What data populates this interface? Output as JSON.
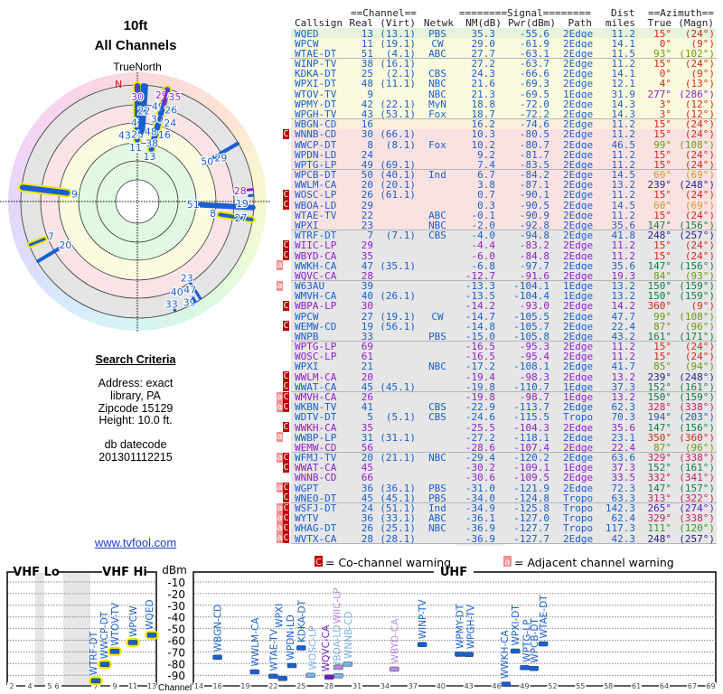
{
  "title": {
    "line1": "10ft",
    "line2": "All Channels",
    "north_label": "TrueNorth",
    "north_mark": "N"
  },
  "criteria": {
    "heading": "Search Criteria",
    "lines": [
      "Address: exact",
      "library, PA",
      "Zipcode 15129",
      "Height: 10.0 ft."
    ],
    "db_lines": [
      "db datecode",
      "201301112215"
    ],
    "link": "www.tvfool.com"
  },
  "table": {
    "group_headers": {
      "channel": "==Channel==",
      "signal": "========Signal========",
      "dist": "Dist",
      "azimuth": "==Azimuth=="
    },
    "headers": [
      "Callsign",
      "Real",
      "(Virt)",
      "Netwk",
      "NM(dB)",
      "Pwr(dBm)",
      "Path",
      "miles",
      "True",
      "(Magn)"
    ],
    "colors": {
      "blue": "#1a5fd0",
      "purple": "#9020d0",
      "cochannel": "#c00000",
      "adjacent": "#f29090",
      "highlight": "#f0e800"
    },
    "rows": [
      [
        "",
        "WQED",
        "13",
        "(13.1)",
        "PBS",
        "35.3",
        "-55.6",
        "2Edge",
        "11.2",
        "15°",
        "(24°)",
        "b"
      ],
      [
        "",
        "WPCW",
        "11",
        "(19.1)",
        "CW",
        "29.0",
        "-61.9",
        "2Edge",
        "14.1",
        "0°",
        "(9°)",
        "b"
      ],
      [
        "",
        "WTAE-DT",
        "51",
        "(4.1)",
        "ABC",
        "27.7",
        "-63.1",
        "2Edge",
        "11.5",
        "93°",
        "(102°)",
        "b"
      ],
      [
        "",
        "WINP-TV",
        "38",
        "(16.1)",
        "",
        "27.2",
        "-63.7",
        "2Edge",
        "11.2",
        "15°",
        "(24°)",
        "b"
      ],
      [
        "",
        "KDKA-DT",
        "25",
        "(2.1)",
        "CBS",
        "24.3",
        "-66.6",
        "2Edge",
        "14.1",
        "0°",
        "(9°)",
        "b"
      ],
      [
        "",
        "WPXI-DT",
        "48",
        "(11.1)",
        "NBC",
        "21.6",
        "-69.3",
        "2Edge",
        "12.1",
        "4°",
        "(13°)",
        "b"
      ],
      [
        "",
        "WTOV-TV",
        "9",
        "",
        "NBC",
        "21.3",
        "-69.5",
        "1Edge",
        "31.9",
        "277°",
        "(286°)",
        "b"
      ],
      [
        "",
        "WPMY-DT",
        "42",
        "(22.1)",
        "MyN",
        "18.8",
        "-72.0",
        "2Edge",
        "14.3",
        "3°",
        "(12°)",
        "b"
      ],
      [
        "",
        "WPGH-TV",
        "43",
        "(53.1)",
        "Fox",
        "18.7",
        "-72.2",
        "2Edge",
        "14.3",
        "3°",
        "(12°)",
        "b"
      ],
      [
        "",
        "WBGN-CD",
        "16",
        "",
        "",
        "16.2",
        "-74.6",
        "2Edge",
        "11.2",
        "15°",
        "(24°)",
        "b"
      ],
      [
        "C",
        "WNNB-CD",
        "30",
        "(66.1)",
        "",
        "10.3",
        "-80.5",
        "2Edge",
        "11.2",
        "15°",
        "(24°)",
        "b"
      ],
      [
        "",
        "WWCP-DT",
        "8",
        "(8.1)",
        "Fox",
        "10.2",
        "-80.7",
        "2Edge",
        "46.5",
        "99°",
        "(108°)",
        "b"
      ],
      [
        "",
        "WPDN-LD",
        "24",
        "",
        "",
        "9.2",
        "-81.7",
        "2Edge",
        "11.2",
        "15°",
        "(24°)",
        "b"
      ],
      [
        "",
        "WPTG-LP",
        "49",
        "(69.1)",
        "",
        "7.4",
        "-83.5",
        "2Edge",
        "11.2",
        "15°",
        "(24°)",
        "b"
      ],
      [
        "",
        "WPCB-DT",
        "50",
        "(40.1)",
        "Ind",
        "6.7",
        "-84.2",
        "2Edge",
        "14.5",
        "60°",
        "(69°)",
        "b"
      ],
      [
        "",
        "WWLM-CA",
        "20",
        "(20.1)",
        "",
        "3.8",
        "-87.1",
        "2Edge",
        "13.2",
        "239°",
        "(248°)",
        "b"
      ],
      [
        "C",
        "WOSC-LP",
        "26",
        "(61.1)",
        "",
        "0.7",
        "-90.1",
        "2Edge",
        "11.2",
        "15°",
        "(24°)",
        "b"
      ],
      [
        "C",
        "WBOA-LD",
        "29",
        "",
        "",
        "0.3",
        "-90.5",
        "2Edge",
        "14.5",
        "60°",
        "(69°)",
        "b"
      ],
      [
        "",
        "WTAE-TV",
        "22",
        "",
        "ABC",
        "-0.1",
        "-90.9",
        "2Edge",
        "11.2",
        "15°",
        "(24°)",
        "b"
      ],
      [
        "",
        "WPXI",
        "23",
        "",
        "NBC",
        "-2.0",
        "-92.8",
        "2Edge",
        "35.6",
        "147°",
        "(156°)",
        "b"
      ],
      [
        "",
        "WTRF-DT",
        "7",
        "(7.1)",
        "CBS",
        "-4.0",
        "-94.8",
        "2Edge",
        "41.8",
        "248°",
        "(257°)",
        "b"
      ],
      [
        "C",
        "WIIC-LP",
        "29",
        "",
        "",
        "-4.4",
        "-83.2",
        "2Edge",
        "11.2",
        "15°",
        "(24°)",
        "p"
      ],
      [
        "C",
        "WBYD-CA",
        "35",
        "",
        "",
        "-6.0",
        "-84.8",
        "2Edge",
        "11.2",
        "15°",
        "(24°)",
        "p"
      ],
      [
        "a",
        "WWKH-CA",
        "47",
        "(35.1)",
        "",
        "-6.8",
        "-97.7",
        "2Edge",
        "35.6",
        "147°",
        "(156°)",
        "b"
      ],
      [
        "",
        "WQVC-CA",
        "28",
        "",
        "",
        "-12.7",
        "-91.6",
        "2Edge",
        "19.3",
        "84°",
        "(93°)",
        "p"
      ],
      [
        "a",
        "W63AU",
        "39",
        "",
        "",
        "-13.3",
        "-104.1",
        "1Edge",
        "13.2",
        "150°",
        "(159°)",
        "b"
      ],
      [
        "",
        "WMVH-CA",
        "40",
        "(26.1)",
        "",
        "-13.5",
        "-104.4",
        "1Edge",
        "13.2",
        "150°",
        "(159°)",
        "b"
      ],
      [
        "C",
        "WBPA-LP",
        "30",
        "",
        "",
        "-14.2",
        "-93.0",
        "2Edge",
        "14.2",
        "360°",
        "(9°)",
        "p"
      ],
      [
        "",
        "WPCW",
        "27",
        "(19.1)",
        "CW",
        "-14.7",
        "-105.5",
        "2Edge",
        "47.7",
        "99°",
        "(108°)",
        "b"
      ],
      [
        "C",
        "WEMW-CD",
        "19",
        "(56.1)",
        "",
        "-14.8",
        "-105.7",
        "2Edge",
        "22.4",
        "87°",
        "(96°)",
        "b"
      ],
      [
        "",
        "WNPB",
        "33",
        "",
        "PBS",
        "-15.0",
        "-105.8",
        "2Edge",
        "43.2",
        "161°",
        "(171°)",
        "b"
      ],
      [
        "",
        "WPTG-LP",
        "69",
        "",
        "",
        "-16.5",
        "-95.3",
        "2Edge",
        "11.2",
        "15°",
        "(24°)",
        "p"
      ],
      [
        "",
        "WOSC-LP",
        "61",
        "",
        "",
        "-16.5",
        "-95.4",
        "2Edge",
        "11.2",
        "15°",
        "(24°)",
        "p"
      ],
      [
        "",
        "WPXI",
        "21",
        "",
        "NBC",
        "-17.2",
        "-108.1",
        "2Edge",
        "41.7",
        "85°",
        "(94°)",
        "b"
      ],
      [
        "C",
        "WWLM-CA",
        "20",
        "",
        "",
        "-19.4",
        "-98.3",
        "2Edge",
        "13.2",
        "239°",
        "(248°)",
        "p"
      ],
      [
        "C",
        "WWAT-CA",
        "45",
        "(45.1)",
        "",
        "-19.8",
        "-110.7",
        "1Edge",
        "37.3",
        "152°",
        "(161°)",
        "b"
      ],
      [
        "aC",
        "WMVH-CA",
        "26",
        "",
        "",
        "-19.8",
        "-98.7",
        "1Edge",
        "13.2",
        "150°",
        "(159°)",
        "p"
      ],
      [
        "aC",
        "WKBN-TV",
        "41",
        "",
        "CBS",
        "-22.9",
        "-113.7",
        "2Edge",
        "62.3",
        "328°",
        "(338°)",
        "b"
      ],
      [
        "",
        "WDTV-DT",
        "5",
        "(5.1)",
        "CBS",
        "-24.6",
        "-115.5",
        "Tropo",
        "70.3",
        "194°",
        "(203°)",
        "b"
      ],
      [
        "C",
        "WWKH-CA",
        "35",
        "",
        "",
        "-25.5",
        "-104.3",
        "2Edge",
        "35.6",
        "147°",
        "(156°)",
        "p"
      ],
      [
        "a",
        "WWBP-LP",
        "31",
        "(31.1)",
        "",
        "-27.2",
        "-118.1",
        "2Edge",
        "23.1",
        "350°",
        "(360°)",
        "b"
      ],
      [
        "",
        "WEMW-CD",
        "56",
        "",
        "",
        "-28.6",
        "-107.4",
        "2Edge",
        "22.4",
        "87°",
        "(96°)",
        "p"
      ],
      [
        "aC",
        "WFMJ-TV",
        "20",
        "(21.1)",
        "NBC",
        "-29.4",
        "-120.2",
        "2Edge",
        "63.6",
        "329°",
        "(338°)",
        "b"
      ],
      [
        "C",
        "WWAT-CA",
        "45",
        "",
        "",
        "-30.2",
        "-109.1",
        "1Edge",
        "37.3",
        "152°",
        "(161°)",
        "p"
      ],
      [
        "",
        "WNNB-CD",
        "66",
        "",
        "",
        "-30.6",
        "-109.5",
        "2Edge",
        "33.5",
        "332°",
        "(341°)",
        "p"
      ],
      [
        "aC",
        "WGPT",
        "36",
        "(36.1)",
        "PBS",
        "-31.0",
        "-121.9",
        "2Edge",
        "72.3",
        "147°",
        "(157°)",
        "b"
      ],
      [
        "C",
        "WNEO-DT",
        "45",
        "(45.1)",
        "PBS",
        "-34.0",
        "-124.8",
        "Tropo",
        "63.3",
        "313°",
        "(322°)",
        "b"
      ],
      [
        "aC",
        "WSFJ-DT",
        "24",
        "(51.1)",
        "Ind",
        "-34.9",
        "-125.8",
        "Tropo",
        "142.3",
        "265°",
        "(274°)",
        "b"
      ],
      [
        "aC",
        "WYTV",
        "36",
        "(33.1)",
        "ABC",
        "-36.1",
        "-127.0",
        "Tropo",
        "62.4",
        "329°",
        "(338°)",
        "b"
      ],
      [
        "aC",
        "WHAG-DT",
        "26",
        "(25.1)",
        "NBC",
        "-36.9",
        "-127.7",
        "Tropo",
        "117.3",
        "111°",
        "(120°)",
        "b"
      ],
      [
        "aC",
        "WVTX-CA",
        "28",
        "(28.1)",
        "",
        "-36.9",
        "-127.7",
        "2Edge",
        "42.3",
        "248°",
        "(257°)",
        "b"
      ]
    ]
  },
  "spectrum": {
    "vhf_lo_label": "VHF Lo",
    "vhf_hi_label": "VHF Hi",
    "uhf_label": "UHF",
    "unit_label": "dBm",
    "channel_label": "Channel",
    "dbm_ticks": [
      "-10",
      "-20",
      "-30",
      "-40",
      "-50",
      "-60",
      "-70",
      "-80",
      "-90"
    ],
    "vhf_ticks": [
      "2",
      "4",
      "5",
      "6",
      "7",
      "9",
      "11",
      "13"
    ],
    "uhf_ticks": [
      "14",
      "16",
      "19",
      "22",
      "25",
      "28",
      "31",
      "34",
      "37",
      "40",
      "43",
      "46",
      "49",
      "52",
      "55",
      "58",
      "61",
      "64",
      "67",
      "69"
    ],
    "legend": {
      "co_flag": "C",
      "co_text": "= Co-channel warning",
      "adj_flag": "a",
      "adj_text": "= Adjacent channel warning"
    },
    "plotted_rows": 25
  }
}
